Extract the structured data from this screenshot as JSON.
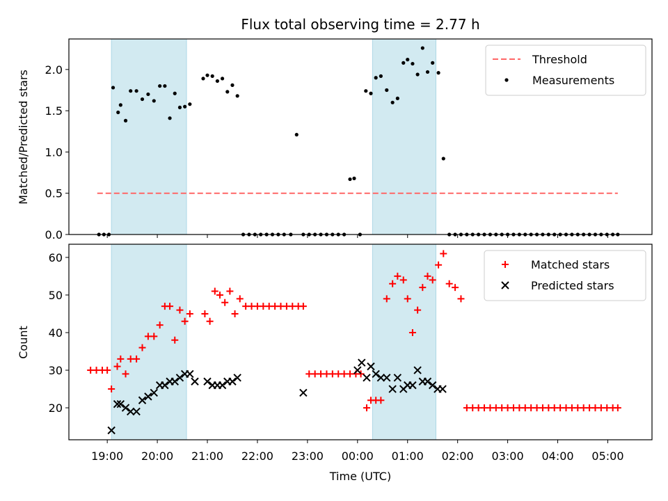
{
  "chart_data": [
    {
      "type": "scatter",
      "title": "Flux total observing time = 2.77 h",
      "xlabel": "",
      "ylabel": "Matched/Predicted stars",
      "xlim": [
        "18:14",
        "05:53"
      ],
      "ylim": [
        0,
        2.37
      ],
      "yticks": [
        "0.0",
        "0.5",
        "1.0",
        "1.5",
        "2.0"
      ],
      "grid": false,
      "legend_position": "top-right",
      "highlight_intervals": [
        [
          "19:05",
          "20:35"
        ],
        [
          "00:18",
          "01:34"
        ]
      ],
      "highlight_color": "#add8e6",
      "threshold": {
        "name": "Threshold",
        "value": 0.5,
        "x_range": [
          "18:48",
          "05:12"
        ],
        "color": "#ff6666"
      },
      "series": [
        {
          "name": "Measurements",
          "color": "#000000",
          "x": [
            "18:50",
            "18:56",
            "19:02",
            "19:07",
            "19:13",
            "19:16",
            "19:22",
            "19:28",
            "19:35",
            "19:42",
            "19:49",
            "19:56",
            "20:03",
            "20:09",
            "20:15",
            "20:21",
            "20:27",
            "20:33",
            "20:39",
            "20:55",
            "21:00",
            "21:06",
            "21:12",
            "21:18",
            "21:24",
            "21:30",
            "21:36",
            "21:43",
            "21:50",
            "21:57",
            "22:04",
            "22:11",
            "22:18",
            "22:25",
            "22:32",
            "22:40",
            "22:47",
            "22:55",
            "23:02",
            "23:09",
            "23:16",
            "23:23",
            "23:30",
            "23:37",
            "23:44",
            "23:51",
            "23:56",
            "00:03",
            "00:10",
            "00:16",
            "00:22",
            "00:28",
            "00:35",
            "00:42",
            "00:48",
            "00:55",
            "01:00",
            "01:06",
            "01:12",
            "01:18",
            "01:24",
            "01:30",
            "01:37",
            "01:43",
            "01:50",
            "01:57",
            "02:04",
            "02:11",
            "02:18",
            "02:25",
            "02:32",
            "02:39",
            "02:46",
            "02:53",
            "03:00",
            "03:07",
            "03:14",
            "03:21",
            "03:28",
            "03:35",
            "03:42",
            "03:49",
            "03:56",
            "04:03",
            "04:10",
            "04:17",
            "04:24",
            "04:31",
            "04:38",
            "04:45",
            "04:52",
            "04:59",
            "05:06",
            "05:12"
          ],
          "y": [
            0,
            0,
            0,
            1.78,
            1.48,
            1.57,
            1.38,
            1.74,
            1.74,
            1.64,
            1.7,
            1.62,
            1.8,
            1.8,
            1.41,
            1.71,
            1.54,
            1.55,
            1.58,
            1.89,
            1.93,
            1.92,
            1.86,
            1.89,
            1.73,
            1.81,
            1.68,
            0,
            0,
            0,
            0,
            0,
            0,
            0,
            0,
            0,
            1.21,
            0,
            0,
            0,
            0,
            0,
            0,
            0,
            0,
            0.67,
            0.68,
            0,
            1.74,
            1.71,
            1.9,
            1.92,
            1.75,
            1.6,
            1.65,
            2.08,
            2.12,
            2.07,
            1.94,
            2.26,
            1.97,
            2.08,
            1.96,
            0.92,
            0,
            0,
            0,
            0,
            0,
            0,
            0,
            0,
            0,
            0,
            0,
            0,
            0,
            0,
            0,
            0,
            0,
            0,
            0,
            0,
            0,
            0,
            0,
            0,
            0,
            0,
            0,
            0,
            0,
            0
          ]
        }
      ]
    },
    {
      "type": "scatter",
      "title": "",
      "xlabel": "Time (UTC)",
      "ylabel": "Count",
      "xlim": [
        "18:14",
        "05:53"
      ],
      "ylim": [
        11.5,
        63.5
      ],
      "yticks": [
        "20",
        "30",
        "40",
        "50",
        "60"
      ],
      "xticks": [
        "19:00",
        "20:00",
        "21:00",
        "22:00",
        "23:00",
        "00:00",
        "01:00",
        "02:00",
        "03:00",
        "04:00",
        "05:00"
      ],
      "grid": false,
      "legend_position": "top-right",
      "highlight_intervals": [
        [
          "19:05",
          "20:35"
        ],
        [
          "00:18",
          "01:34"
        ]
      ],
      "highlight_color": "#add8e6",
      "series": [
        {
          "name": "Matched stars",
          "marker": "+",
          "color": "#ff0000",
          "x": [
            "18:40",
            "18:47",
            "18:54",
            "19:00",
            "19:05",
            "19:12",
            "19:16",
            "19:22",
            "19:28",
            "19:35",
            "19:42",
            "19:49",
            "19:56",
            "20:03",
            "20:09",
            "20:15",
            "20:21",
            "20:27",
            "20:33",
            "20:39",
            "20:57",
            "21:03",
            "21:09",
            "21:15",
            "21:21",
            "21:27",
            "21:33",
            "21:39",
            "21:46",
            "21:53",
            "22:00",
            "22:07",
            "22:14",
            "22:21",
            "22:28",
            "22:35",
            "22:42",
            "22:49",
            "22:55",
            "23:02",
            "23:09",
            "23:16",
            "23:23",
            "23:30",
            "23:37",
            "23:44",
            "23:51",
            "23:58",
            "00:04",
            "00:11",
            "00:16",
            "00:22",
            "00:28",
            "00:35",
            "00:42",
            "00:48",
            "00:55",
            "01:00",
            "01:06",
            "01:12",
            "01:18",
            "01:24",
            "01:30",
            "01:37",
            "01:43",
            "01:50",
            "01:57",
            "02:04",
            "02:11",
            "02:18",
            "02:25",
            "02:32",
            "02:39",
            "02:46",
            "02:53",
            "03:00",
            "03:07",
            "03:14",
            "03:21",
            "03:28",
            "03:35",
            "03:42",
            "03:49",
            "03:56",
            "04:03",
            "04:10",
            "04:17",
            "04:24",
            "04:31",
            "04:38",
            "04:45",
            "04:52",
            "04:59",
            "05:06",
            "05:12"
          ],
          "y": [
            30,
            30,
            30,
            30,
            25,
            31,
            33,
            29,
            33,
            33,
            36,
            39,
            39,
            42,
            47,
            47,
            38,
            46,
            43,
            45,
            45,
            43,
            51,
            50,
            48,
            51,
            45,
            49,
            47,
            47,
            47,
            47,
            47,
            47,
            47,
            47,
            47,
            47,
            47,
            29,
            29,
            29,
            29,
            29,
            29,
            29,
            29,
            29,
            29,
            20,
            22,
            22,
            22,
            49,
            53,
            55,
            54,
            49,
            40,
            46,
            52,
            55,
            54,
            58,
            61,
            53,
            52,
            49,
            20,
            20,
            20,
            20,
            20,
            20,
            20,
            20,
            20,
            20,
            20,
            20,
            20,
            20,
            20,
            20,
            20,
            20,
            20,
            20,
            20,
            20,
            20,
            20,
            20,
            20,
            20
          ]
        },
        {
          "name": "Predicted stars",
          "marker": "x",
          "color": "#000000",
          "x": [
            "19:05",
            "19:12",
            "19:16",
            "19:22",
            "19:28",
            "19:35",
            "19:42",
            "19:49",
            "19:56",
            "20:03",
            "20:09",
            "20:15",
            "20:21",
            "20:27",
            "20:33",
            "20:39",
            "20:45",
            "21:00",
            "21:06",
            "21:12",
            "21:18",
            "21:24",
            "21:30",
            "21:36",
            "22:55",
            "00:00",
            "00:05",
            "00:11",
            "00:16",
            "00:22",
            "00:28",
            "00:35",
            "00:42",
            "00:48",
            "00:55",
            "01:00",
            "01:06",
            "01:12",
            "01:18",
            "01:24",
            "01:30",
            "01:36",
            "01:42"
          ],
          "y": [
            14,
            21,
            21,
            20,
            19,
            19,
            22,
            23,
            24,
            26,
            26,
            27,
            27,
            28,
            29,
            29,
            27,
            27,
            26,
            26,
            26,
            27,
            27,
            28,
            24,
            30,
            32,
            28,
            31,
            29,
            28,
            28,
            25,
            28,
            25,
            26,
            26,
            30,
            27,
            27,
            26,
            25,
            25
          ]
        }
      ]
    }
  ]
}
